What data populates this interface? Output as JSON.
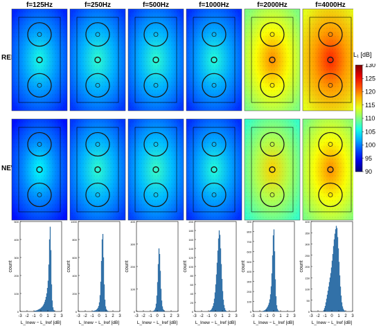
{
  "frequencies": [
    "f=125Hz",
    "f=250Hz",
    "f=500Hz",
    "f=1000Hz",
    "f=2000Hz",
    "f=4000Hz"
  ],
  "row_labels": {
    "ref": "REF",
    "new": "NEW"
  },
  "colorbar": {
    "title": "L₁ [dB]",
    "min": 90,
    "max": 130,
    "ticks": [
      90,
      95,
      100,
      105,
      110,
      115,
      120,
      125,
      130
    ],
    "colormap": "jet"
  },
  "intensity_maps": {
    "REF": [
      {
        "label": "f=125Hz",
        "level": 0.28
      },
      {
        "label": "f=250Hz",
        "level": 0.3
      },
      {
        "label": "f=500Hz",
        "level": 0.3
      },
      {
        "label": "f=1000Hz",
        "level": 0.29
      },
      {
        "label": "f=2000Hz",
        "level": 0.62
      },
      {
        "label": "f=4000Hz",
        "level": 0.72
      }
    ],
    "NEW": [
      {
        "label": "f=125Hz",
        "level": 0.26
      },
      {
        "label": "f=250Hz",
        "level": 0.3
      },
      {
        "label": "f=500Hz",
        "level": 0.31
      },
      {
        "label": "f=1000Hz",
        "level": 0.29
      },
      {
        "label": "f=2000Hz",
        "level": 0.55
      },
      {
        "label": "f=4000Hz",
        "level": 0.62
      }
    ]
  },
  "chart_data": [
    {
      "type": "bar",
      "title": "f=125Hz",
      "xlabel": "L_Inew − L_Iref [dB]",
      "ylabel": "count",
      "xlim": [
        -3,
        3
      ],
      "ylim": [
        0,
        500
      ],
      "yticks": [
        0,
        100,
        200,
        300,
        400,
        500
      ],
      "xticks": [
        -3,
        -2,
        -1,
        0,
        1,
        2,
        3
      ],
      "bin_width": 0.1,
      "bin_start": -1.0,
      "values": [
        2,
        3,
        4,
        5,
        6,
        8,
        10,
        12,
        14,
        16,
        20,
        24,
        28,
        34,
        42,
        52,
        64,
        80,
        100,
        130,
        170,
        260,
        400,
        470,
        340,
        150,
        60,
        22,
        8,
        3
      ]
    },
    {
      "type": "bar",
      "title": "f=250Hz",
      "xlabel": "L_Inew − L_Iref [dB]",
      "ylabel": "count",
      "xlim": [
        -3,
        3
      ],
      "ylim": [
        0,
        1000
      ],
      "yticks": [
        0,
        200,
        400,
        600,
        800,
        1000
      ],
      "xticks": [
        -3,
        -2,
        -1,
        0,
        1,
        2,
        3
      ],
      "bin_width": 0.1,
      "bin_start": -1.0,
      "values": [
        3,
        4,
        6,
        8,
        10,
        14,
        20,
        28,
        40,
        60,
        100,
        180,
        330,
        560,
        800,
        860,
        600,
        300,
        130,
        55,
        25,
        12,
        6,
        3
      ]
    },
    {
      "type": "bar",
      "title": "f=500Hz",
      "xlabel": "L_Inew − L_Iref [dB]",
      "ylabel": "count",
      "xlim": [
        -3,
        3
      ],
      "ylim": [
        0,
        400
      ],
      "yticks": [
        0,
        100,
        200,
        300,
        400
      ],
      "xticks": [
        -3,
        -2,
        -1,
        0,
        1,
        2,
        3
      ],
      "bin_width": 0.1,
      "bin_start": -0.6,
      "values": [
        2,
        4,
        8,
        16,
        34,
        70,
        130,
        210,
        280,
        255,
        180,
        100,
        48,
        22,
        10,
        5,
        2
      ]
    },
    {
      "type": "bar",
      "title": "f=1000Hz",
      "xlabel": "L_Inew − L_Iref [dB]",
      "ylabel": "count",
      "xlim": [
        -3,
        3
      ],
      "ylim": [
        0,
        200
      ],
      "yticks": [
        0,
        20,
        40,
        60,
        80,
        100,
        120,
        140,
        160,
        180,
        200
      ],
      "xticks": [
        -3,
        -2,
        -1,
        0,
        1,
        2,
        3
      ],
      "bin_width": 0.1,
      "bin_start": -0.9,
      "values": [
        1,
        2,
        3,
        5,
        8,
        12,
        18,
        28,
        42,
        60,
        82,
        108,
        135,
        162,
        180,
        170,
        140,
        105,
        72,
        45,
        26,
        14,
        7,
        3,
        1
      ]
    },
    {
      "type": "bar",
      "title": "f=2000Hz",
      "xlabel": "L_Inew − L_Iref [dB]",
      "ylabel": "count",
      "xlim": [
        -3,
        3
      ],
      "ylim": [
        0,
        900
      ],
      "yticks": [
        0,
        100,
        200,
        300,
        400,
        500,
        600,
        700,
        800,
        900
      ],
      "xticks": [
        -3,
        -2,
        -1,
        0,
        1,
        2,
        3
      ],
      "bin_width": 0.1,
      "bin_start": -1.6,
      "values": [
        3,
        5,
        8,
        12,
        18,
        26,
        36,
        48,
        64,
        85,
        120,
        170,
        250,
        380,
        560,
        760,
        820,
        600,
        320,
        150,
        60,
        25,
        10,
        4
      ]
    },
    {
      "type": "bar",
      "title": "f=4000Hz",
      "xlabel": "L_Inew − L_Iref [dB]",
      "ylabel": "count",
      "xlim": [
        -3,
        3
      ],
      "ylim": [
        0,
        400
      ],
      "yticks": [
        0,
        50,
        100,
        150,
        200,
        250,
        300,
        350,
        400
      ],
      "xticks": [
        -3,
        -2,
        -1,
        0,
        1,
        2,
        3
      ],
      "bin_width": 0.1,
      "bin_start": -1.2,
      "values": [
        6,
        14,
        24,
        40,
        56,
        74,
        92,
        110,
        130,
        150,
        170,
        195,
        225,
        255,
        290,
        320,
        345,
        365,
        380,
        370,
        330,
        280,
        220,
        160,
        110,
        70,
        40,
        22,
        12,
        6,
        3
      ]
    }
  ]
}
